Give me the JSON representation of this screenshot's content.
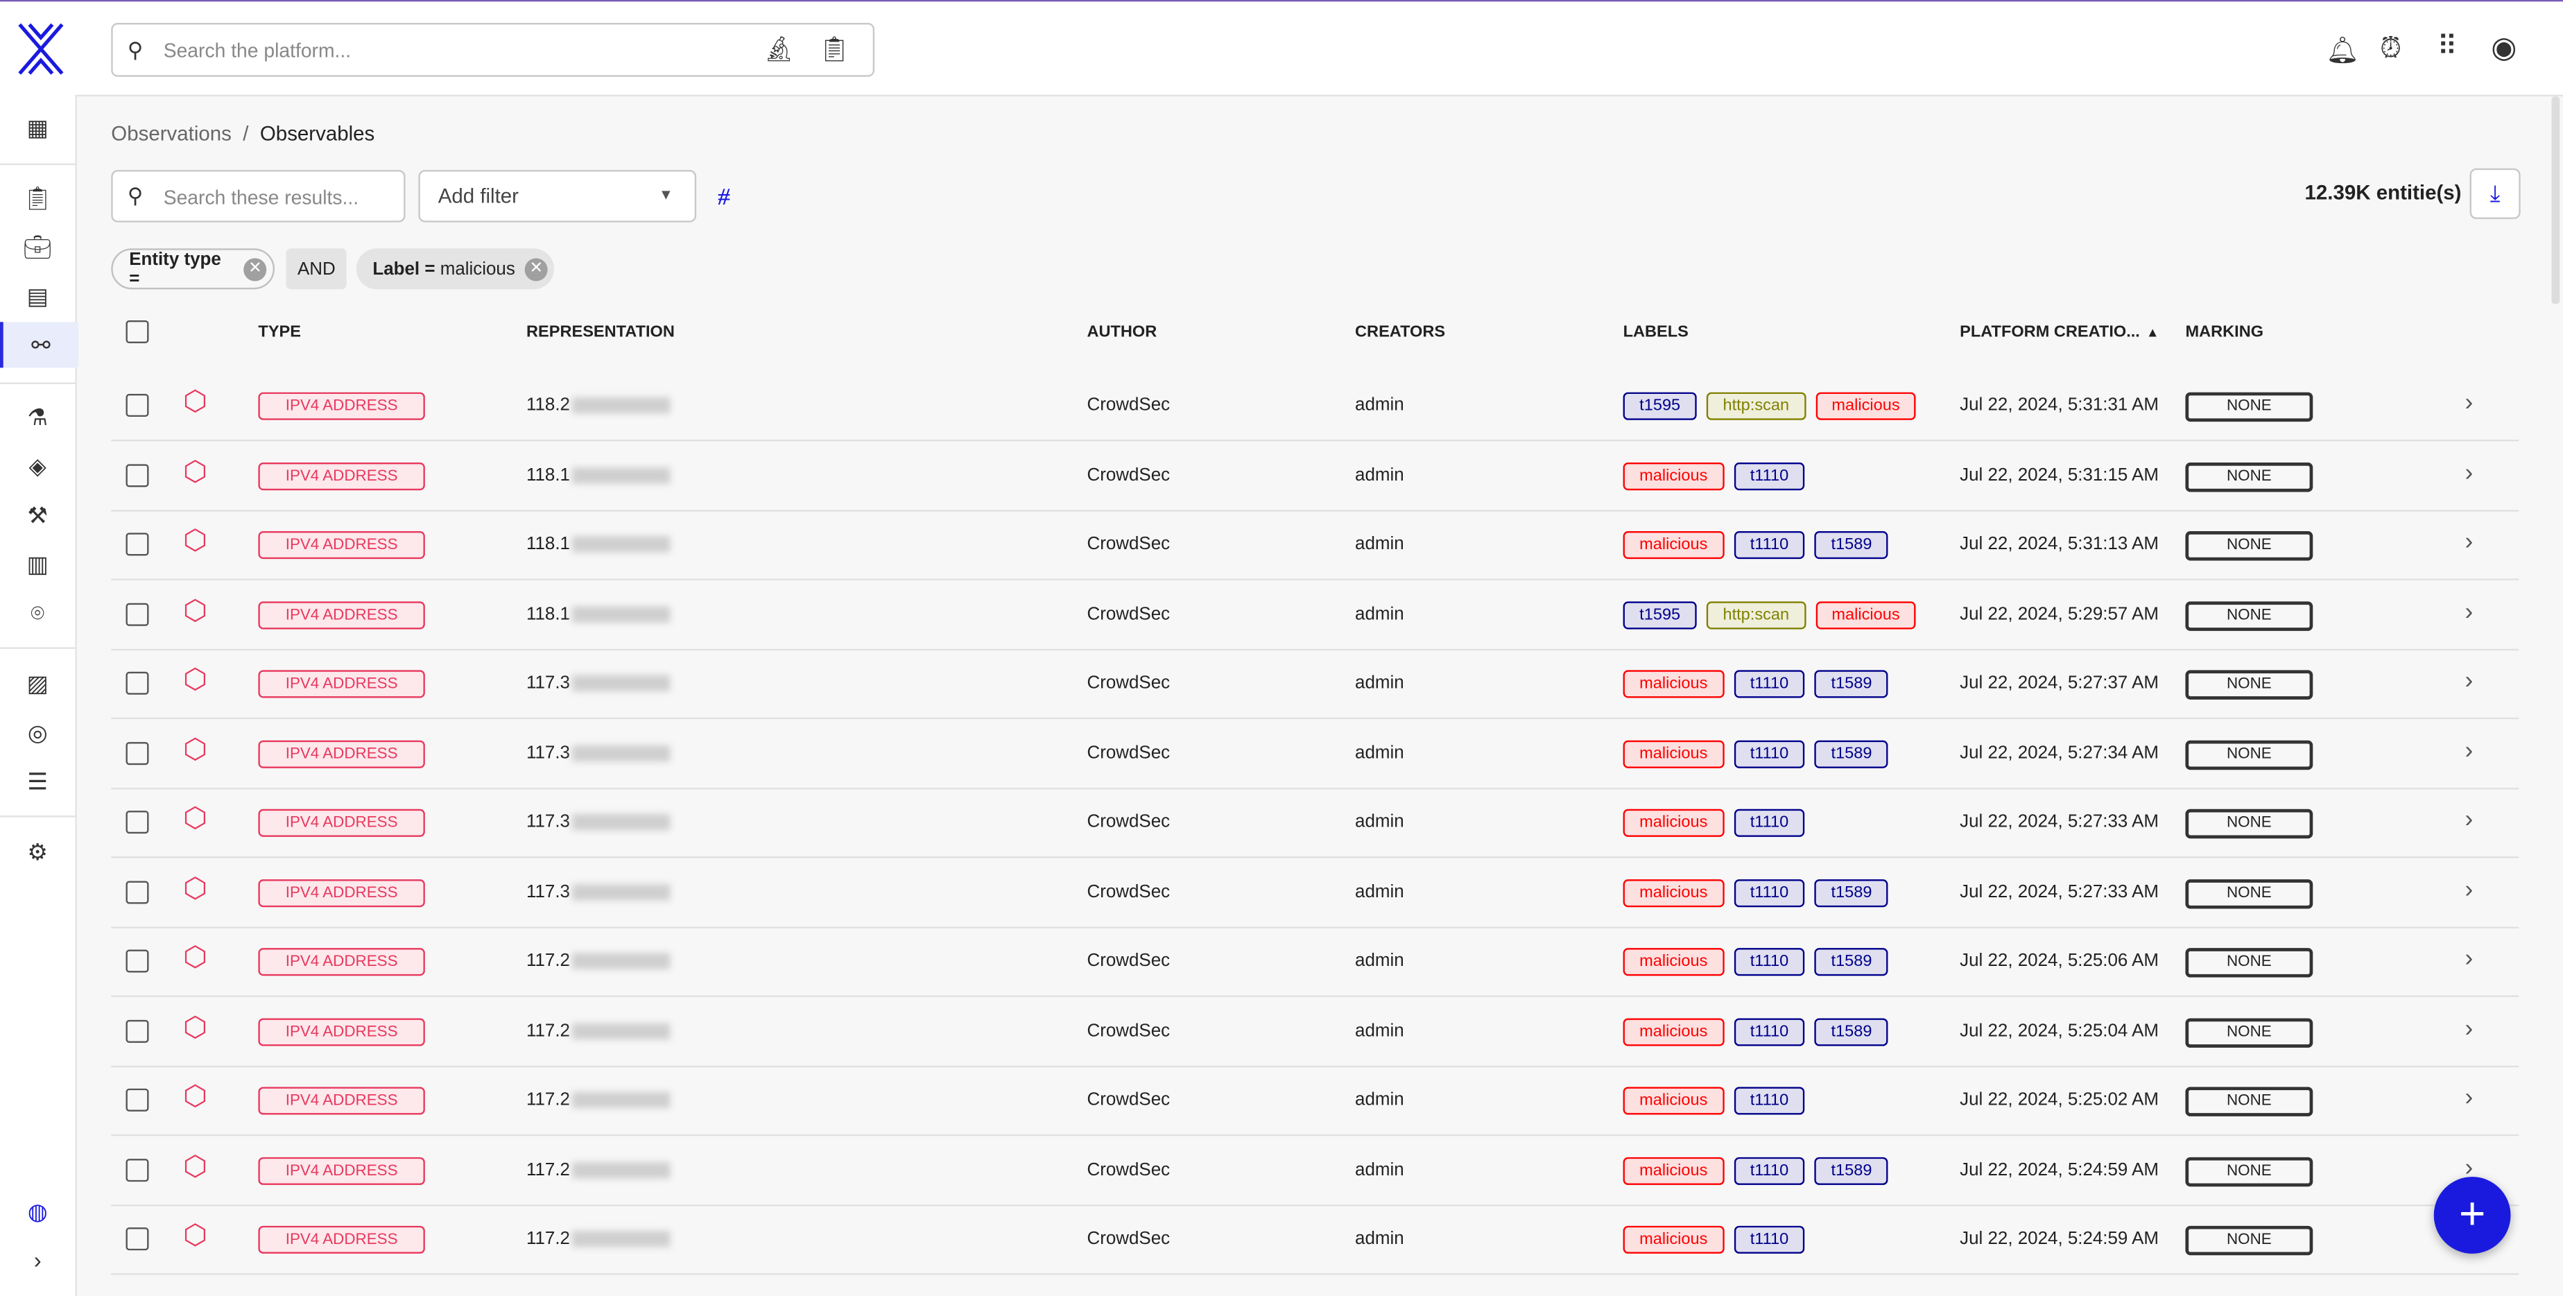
{
  "header": {
    "search_placeholder": "Search the platform..."
  },
  "breadcrumb": {
    "parent": "Observations",
    "separator": "/",
    "current": "Observables"
  },
  "toolbar": {
    "search_placeholder": "Search these results...",
    "add_filter": "Add filter",
    "count": "12.39K entitie(s)"
  },
  "filters": {
    "chip1": "Entity type =",
    "operator": "AND",
    "chip2_key": "Label =",
    "chip2_value": "malicious"
  },
  "columns": {
    "type": "TYPE",
    "representation": "REPRESENTATION",
    "author": "AUTHOR",
    "creators": "CREATORS",
    "labels": "LABELS",
    "created": "PLATFORM CREATIO...",
    "marking": "MARKING"
  },
  "label_colors": {
    "t1595": "#00008b",
    "t1110": "#00008b",
    "t1589": "#00008b",
    "http:scan": "#808000",
    "malicious": "#ff0000"
  },
  "rows": [
    {
      "type": "IPV4 ADDRESS",
      "rep": "118.2",
      "author": "CrowdSec",
      "creator": "admin",
      "labels": [
        "t1595",
        "http:scan",
        "malicious"
      ],
      "date": "Jul 22, 2024, 5:31:31 AM",
      "marking": "NONE"
    },
    {
      "type": "IPV4 ADDRESS",
      "rep": "118.1",
      "author": "CrowdSec",
      "creator": "admin",
      "labels": [
        "malicious",
        "t1110"
      ],
      "date": "Jul 22, 2024, 5:31:15 AM",
      "marking": "NONE"
    },
    {
      "type": "IPV4 ADDRESS",
      "rep": "118.1",
      "author": "CrowdSec",
      "creator": "admin",
      "labels": [
        "malicious",
        "t1110",
        "t1589"
      ],
      "date": "Jul 22, 2024, 5:31:13 AM",
      "marking": "NONE"
    },
    {
      "type": "IPV4 ADDRESS",
      "rep": "118.1",
      "author": "CrowdSec",
      "creator": "admin",
      "labels": [
        "t1595",
        "http:scan",
        "malicious"
      ],
      "date": "Jul 22, 2024, 5:29:57 AM",
      "marking": "NONE"
    },
    {
      "type": "IPV4 ADDRESS",
      "rep": "117.3",
      "author": "CrowdSec",
      "creator": "admin",
      "labels": [
        "malicious",
        "t1110",
        "t1589"
      ],
      "date": "Jul 22, 2024, 5:27:37 AM",
      "marking": "NONE"
    },
    {
      "type": "IPV4 ADDRESS",
      "rep": "117.3",
      "author": "CrowdSec",
      "creator": "admin",
      "labels": [
        "malicious",
        "t1110",
        "t1589"
      ],
      "date": "Jul 22, 2024, 5:27:34 AM",
      "marking": "NONE"
    },
    {
      "type": "IPV4 ADDRESS",
      "rep": "117.3",
      "author": "CrowdSec",
      "creator": "admin",
      "labels": [
        "malicious",
        "t1110"
      ],
      "date": "Jul 22, 2024, 5:27:33 AM",
      "marking": "NONE"
    },
    {
      "type": "IPV4 ADDRESS",
      "rep": "117.3",
      "author": "CrowdSec",
      "creator": "admin",
      "labels": [
        "malicious",
        "t1110",
        "t1589"
      ],
      "date": "Jul 22, 2024, 5:27:33 AM",
      "marking": "NONE"
    },
    {
      "type": "IPV4 ADDRESS",
      "rep": "117.2",
      "author": "CrowdSec",
      "creator": "admin",
      "labels": [
        "malicious",
        "t1110",
        "t1589"
      ],
      "date": "Jul 22, 2024, 5:25:06 AM",
      "marking": "NONE"
    },
    {
      "type": "IPV4 ADDRESS",
      "rep": "117.2",
      "author": "CrowdSec",
      "creator": "admin",
      "labels": [
        "malicious",
        "t1110",
        "t1589"
      ],
      "date": "Jul 22, 2024, 5:25:04 AM",
      "marking": "NONE"
    },
    {
      "type": "IPV4 ADDRESS",
      "rep": "117.2",
      "author": "CrowdSec",
      "creator": "admin",
      "labels": [
        "malicious",
        "t1110"
      ],
      "date": "Jul 22, 2024, 5:25:02 AM",
      "marking": "NONE"
    },
    {
      "type": "IPV4 ADDRESS",
      "rep": "117.2",
      "author": "CrowdSec",
      "creator": "admin",
      "labels": [
        "malicious",
        "t1110",
        "t1589"
      ],
      "date": "Jul 22, 2024, 5:24:59 AM",
      "marking": "NONE"
    },
    {
      "type": "IPV4 ADDRESS",
      "rep": "117.2",
      "author": "CrowdSec",
      "creator": "admin",
      "labels": [
        "malicious",
        "t1110"
      ],
      "date": "Jul 22, 2024, 5:24:59 AM",
      "marking": "NONE"
    }
  ],
  "fab": "+"
}
